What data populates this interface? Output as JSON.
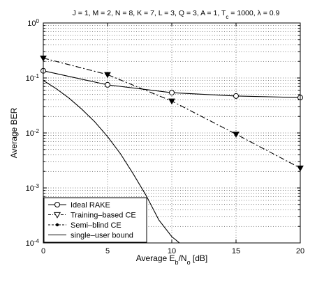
{
  "chart_data": {
    "type": "line",
    "title_parts": {
      "main": "J = 1, M = 2, N = 8, K = 7, L = 3, Q = 3, A = 1, T",
      "main_sub": "c",
      "tail": " = 1000, λ = 0.9"
    },
    "xlabel_parts": {
      "a": "Average E",
      "a_sub": "b",
      "b": "/N",
      "b_sub": "o",
      "c": " [dB]"
    },
    "ylabel": "Average BER",
    "x_scale": "linear",
    "y_scale": "log",
    "xlim": [
      0,
      20
    ],
    "ylim": [
      0.0001,
      1
    ],
    "x_ticks": [
      0,
      5,
      10,
      15,
      20
    ],
    "x_tick_labels": [
      "0",
      "5",
      "10",
      "15",
      "20"
    ],
    "y_ticks": [
      0.0001,
      0.001,
      0.01,
      0.1,
      1
    ],
    "y_tick_labels": [
      {
        "base": "10",
        "exp": "-4"
      },
      {
        "base": "10",
        "exp": "-3"
      },
      {
        "base": "10",
        "exp": "-2"
      },
      {
        "base": "10",
        "exp": "-1"
      },
      {
        "base": "10",
        "exp": "0"
      }
    ],
    "grid": true,
    "grid_style": "dotted",
    "legend_position": "bottom-left",
    "series": [
      {
        "name": "Ideal RAKE",
        "marker": "circle",
        "line": "solid",
        "x": [
          0,
          5,
          10,
          15,
          20
        ],
        "y": [
          0.135,
          0.075,
          0.054,
          0.047,
          0.044
        ]
      },
      {
        "name": "Training–based CE",
        "marker": "triangle-down",
        "line": "dashdot",
        "x": [
          0,
          5,
          10,
          15,
          20
        ],
        "y": [
          0.23,
          0.115,
          0.038,
          0.0095,
          0.0023
        ]
      },
      {
        "name": "Semi–blind CE",
        "marker": "dot",
        "line": "dashed",
        "x": [],
        "y": []
      },
      {
        "name": "single–user bound",
        "marker": "none",
        "line": "solid",
        "x": [
          0,
          1,
          2,
          3,
          4,
          5,
          6,
          7,
          8,
          9,
          10,
          10.6
        ],
        "y": [
          0.09,
          0.064,
          0.043,
          0.027,
          0.016,
          0.0086,
          0.0042,
          0.0018,
          0.00073,
          0.00026,
          0.00013,
          0.0001
        ]
      }
    ]
  }
}
